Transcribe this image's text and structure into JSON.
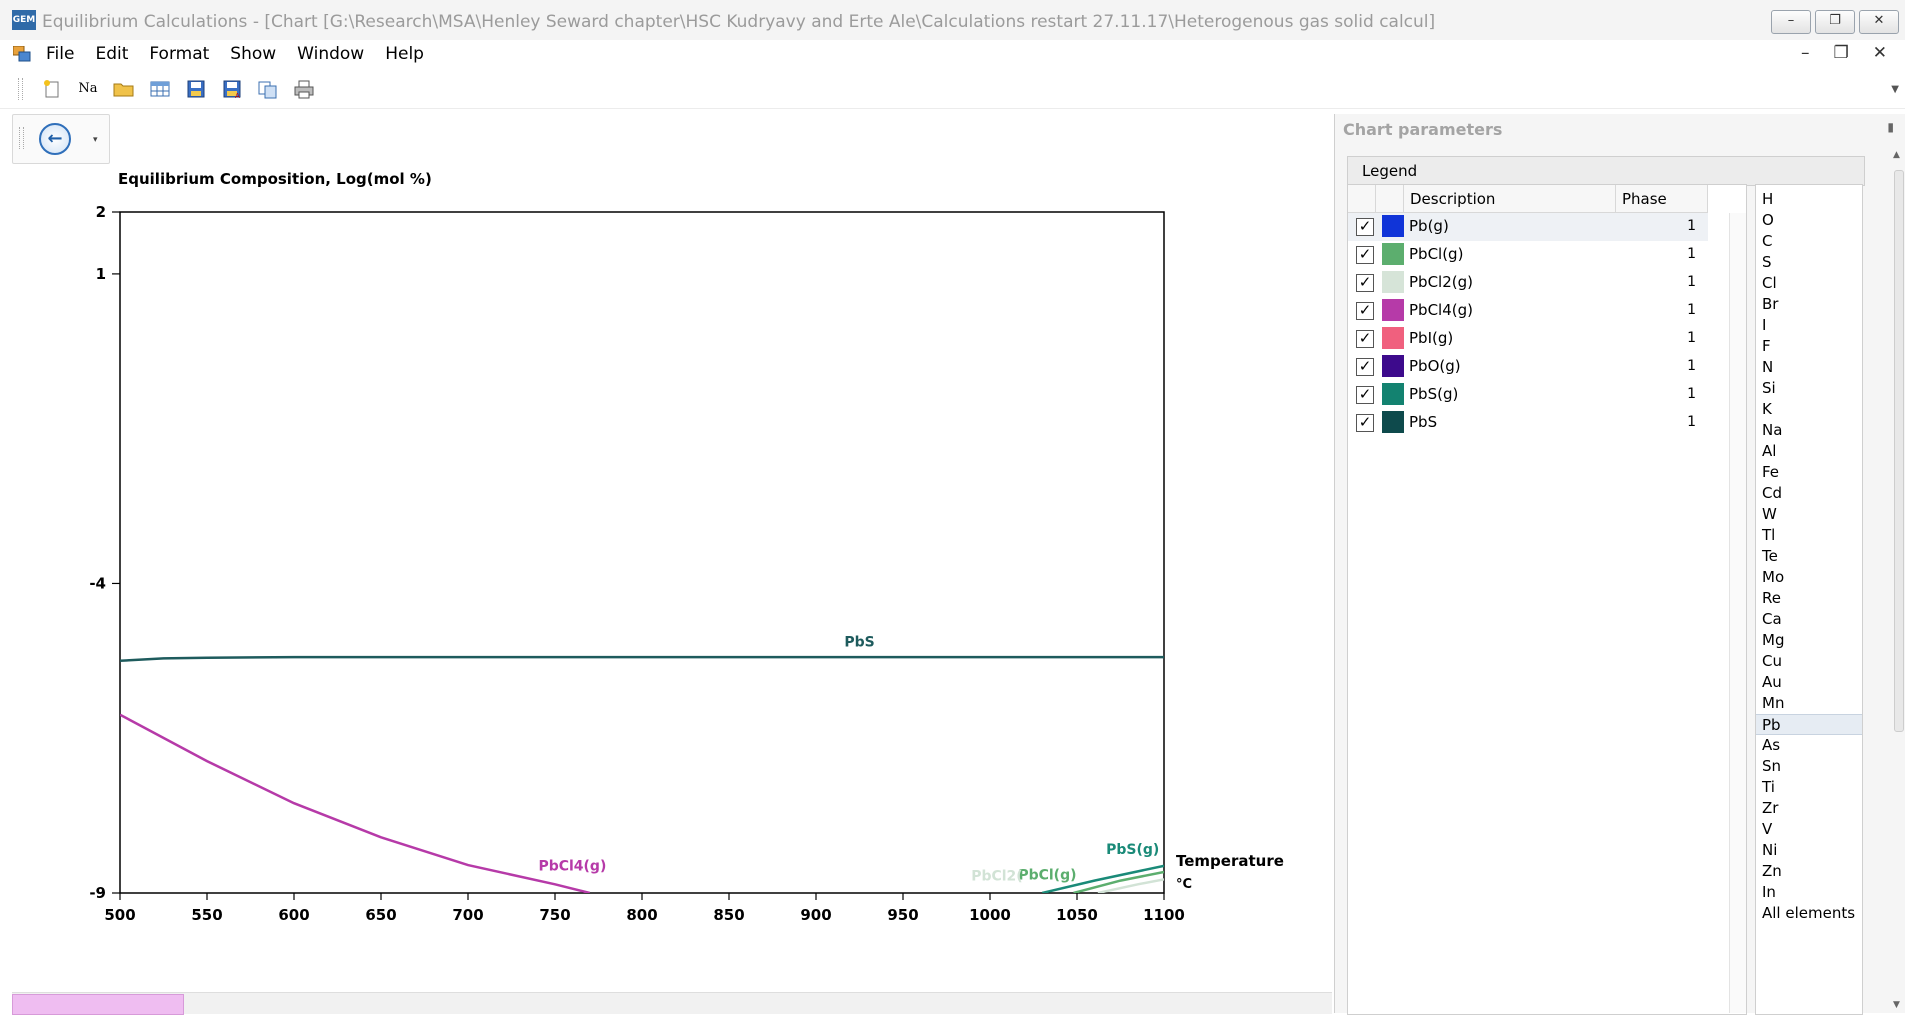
{
  "window": {
    "title": "Equilibrium Calculations - [Chart [G:\\Research\\MSA\\Henley Seward chapter\\HSC Kudryavy and Erte Ale\\Calculations restart 27.11.17\\Heterogenous gas solid calcul]",
    "app_icon_text": "GEM",
    "minimize": "–",
    "restore": "❐",
    "close": "✕"
  },
  "menu": {
    "items": [
      "File",
      "Edit",
      "Format",
      "Show",
      "Window",
      "Help"
    ],
    "mdi_minimize": "–",
    "mdi_restore": "❐",
    "mdi_close": "✕"
  },
  "toolbar": {
    "icons": [
      "new-icon",
      "periodic-table-icon",
      "open-folder-icon",
      "table-icon",
      "save-icon",
      "save-as-icon",
      "copy-icon",
      "print-icon"
    ],
    "periodic_table_label": "Na"
  },
  "nav": {
    "back_glyph": "←",
    "dropdown_glyph": "▾"
  },
  "chart_data": {
    "type": "line",
    "title": "Equilibrium Composition, Log(mol %)",
    "xlabel": "Temperature",
    "xunit": "°C",
    "xlim": [
      500,
      1100
    ],
    "ylim": [
      -9,
      2
    ],
    "x_ticks": [
      500,
      550,
      600,
      650,
      700,
      750,
      800,
      850,
      900,
      950,
      1000,
      1050,
      1100
    ],
    "y_ticks": [
      2,
      1,
      -4,
      -9
    ],
    "grid": false,
    "series": [
      {
        "name": "PbS",
        "color": "#1e5b5d",
        "x": [
          500,
          525,
          550,
          600,
          700,
          800,
          900,
          1000,
          1100
        ],
        "y": [
          -5.25,
          -5.21,
          -5.2,
          -5.19,
          -5.19,
          -5.19,
          -5.19,
          -5.19,
          -5.19
        ]
      },
      {
        "name": "PbCl4(g)",
        "color": "#b63aa8",
        "x": [
          500,
          550,
          600,
          650,
          700,
          750,
          770
        ],
        "y": [
          -6.12,
          -6.87,
          -7.55,
          -8.1,
          -8.55,
          -8.86,
          -9.0
        ]
      },
      {
        "name": "PbS(g)",
        "color": "#1a8a78",
        "x": [
          1030,
          1060,
          1100
        ],
        "y": [
          -9.0,
          -8.8,
          -8.56
        ]
      },
      {
        "name": "PbCl(g)",
        "color": "#5cae6e",
        "x": [
          1048,
          1075,
          1100
        ],
        "y": [
          -9.0,
          -8.8,
          -8.66
        ]
      },
      {
        "name": "PbCl2(g)",
        "color": "#d2e3d6",
        "x": [
          1062,
          1085,
          1100
        ],
        "y": [
          -9.0,
          -8.86,
          -8.78
        ]
      }
    ],
    "annotations": [
      {
        "text": "PbS",
        "x": 925,
        "y": -5.02,
        "color": "#1e5b5d"
      },
      {
        "text": "PbCl4(g)",
        "x": 760,
        "y": -8.64,
        "color": "#b63aa8"
      },
      {
        "text": "PbS(g)",
        "x": 1082,
        "y": -8.37,
        "color": "#1a8a78"
      },
      {
        "text": "PbCl(g)",
        "x": 1033,
        "y": -8.78,
        "color": "#5cae6e"
      },
      {
        "text": "PbCl2(",
        "x": 1004,
        "y": -8.8,
        "color": "#d2e3d6"
      }
    ]
  },
  "panel": {
    "title": "Chart parameters",
    "pin_glyph": "📌",
    "legend_label": "Legend",
    "columns": [
      "Description",
      "Phase"
    ],
    "legend": [
      {
        "name": "Pb(g)",
        "color": "#1034d8",
        "phase": "1",
        "checked": true
      },
      {
        "name": "PbCl(g)",
        "color": "#5cae6e",
        "phase": "1",
        "checked": true
      },
      {
        "name": "PbCl2(g)",
        "color": "#d6e4d8",
        "phase": "1",
        "checked": true
      },
      {
        "name": "PbCl4(g)",
        "color": "#b63aa8",
        "phase": "1",
        "checked": true
      },
      {
        "name": "PbI(g)",
        "color": "#f0607e",
        "phase": "1",
        "checked": true
      },
      {
        "name": "PbO(g)",
        "color": "#3d0a8c",
        "phase": "1",
        "checked": true
      },
      {
        "name": "PbS(g)",
        "color": "#138270",
        "phase": "1",
        "checked": true
      },
      {
        "name": "PbS",
        "color": "#0e4a4c",
        "phase": "1",
        "checked": true
      }
    ],
    "elements": [
      "H",
      "O",
      "C",
      "S",
      "Cl",
      "Br",
      "I",
      "F",
      "N",
      "Si",
      "K",
      "Na",
      "Al",
      "Fe",
      "Cd",
      "W",
      "Tl",
      "Te",
      "Mo",
      "Re",
      "Ca",
      "Mg",
      "Cu",
      "Au",
      "Mn",
      "Pb",
      "As",
      "Sn",
      "Ti",
      "Zr",
      "V",
      "Ni",
      "Zn",
      "In",
      "All elements"
    ],
    "selected_element": "Pb"
  }
}
